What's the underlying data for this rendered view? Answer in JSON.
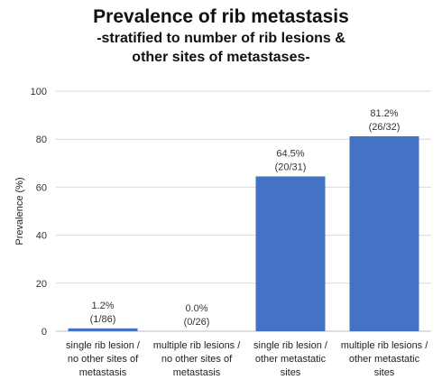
{
  "chart_data": {
    "type": "bar",
    "title": "Prevalence of rib metastasis",
    "subtitle_lines": [
      "-stratified to number of rib lesions &",
      "other sites of metastases-"
    ],
    "ylabel": "Prevalence (%)",
    "xlabel": "",
    "ylim": [
      0,
      100
    ],
    "yticks": [
      0,
      20,
      40,
      60,
      80,
      100
    ],
    "grid": true,
    "bar_color": "#4472c4",
    "categories": [
      [
        "single rib lesion /",
        "no other sites of",
        "metastasis"
      ],
      [
        "multiple rib lesions /",
        "no other sites of",
        "metastasis"
      ],
      [
        "single rib lesion /",
        "other metastatic",
        "sites"
      ],
      [
        "multiple rib lesions /",
        "other metastatic",
        "sites"
      ]
    ],
    "values": [
      1.2,
      0.0,
      64.5,
      81.2
    ],
    "data_labels": [
      [
        "1.2%",
        "(1/86)"
      ],
      [
        "0.0%",
        "(0/26)"
      ],
      [
        "64.5%",
        "(20/31)"
      ],
      [
        "81.2%",
        "(26/32)"
      ]
    ]
  }
}
